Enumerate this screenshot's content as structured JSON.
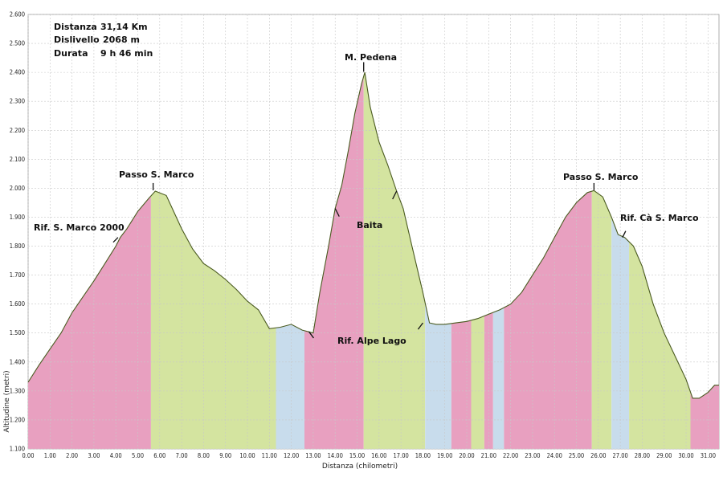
{
  "chart_data": {
    "type": "area",
    "title": "",
    "xlabel": "Distanza (chilometri)",
    "ylabel": "Altitudine (metri)",
    "xlim": [
      0,
      31.5
    ],
    "ylim": [
      1100,
      2600
    ],
    "x_ticks": [
      0,
      1,
      2,
      3,
      4,
      5,
      6,
      7,
      8,
      9,
      10,
      11,
      12,
      13,
      14,
      15,
      16,
      17,
      18,
      19,
      20,
      21,
      22,
      23,
      24,
      25,
      26,
      27,
      28,
      29,
      30,
      31
    ],
    "x_tick_labels": [
      "0.00",
      "1.00",
      "2.00",
      "3.00",
      "4.00",
      "5.00",
      "6.00",
      "7.00",
      "8.00",
      "9.00",
      "10.00",
      "11.00",
      "12.00",
      "13.00",
      "14.00",
      "15.00",
      "16.00",
      "17.00",
      "18.00",
      "19.00",
      "20.00",
      "21.00",
      "22.00",
      "23.00",
      "24.00",
      "25.00",
      "26.00",
      "27.00",
      "28.00",
      "29.00",
      "30.00",
      "31.00"
    ],
    "y_ticks": [
      1100,
      1200,
      1300,
      1400,
      1500,
      1600,
      1700,
      1800,
      1900,
      2000,
      2100,
      2200,
      2300,
      2400,
      2500,
      2600
    ],
    "y_tick_labels": [
      "1.100",
      "1.200",
      "1.300",
      "1.400",
      "1.500",
      "1.600",
      "1.700",
      "1.800",
      "1.900",
      "2.000",
      "2.100",
      "2.200",
      "2.300",
      "2.400",
      "2.500",
      "2.600"
    ],
    "grid": true,
    "profile": {
      "x": [
        0,
        0.5,
        1.0,
        1.5,
        2.0,
        2.5,
        3.0,
        3.5,
        4.0,
        4.2,
        4.5,
        5.0,
        5.5,
        5.8,
        6.3,
        7.0,
        7.5,
        8.0,
        8.5,
        9.0,
        9.5,
        10.0,
        10.5,
        11.0,
        11.5,
        12.0,
        12.5,
        13.0,
        13.3,
        13.7,
        14.0,
        14.3,
        14.6,
        14.9,
        15.2,
        15.35,
        15.6,
        16.0,
        16.4,
        16.8,
        17.1,
        17.5,
        18.0,
        18.3,
        18.6,
        19.0,
        19.5,
        20.0,
        20.5,
        21.0,
        21.5,
        22.0,
        22.5,
        23.0,
        23.5,
        24.0,
        24.5,
        25.0,
        25.5,
        25.8,
        26.2,
        26.6,
        26.9,
        27.2,
        27.6,
        28.0,
        28.5,
        29.0,
        29.5,
        30.0,
        30.3,
        30.6,
        31.0,
        31.3,
        31.5
      ],
      "y": [
        1330,
        1390,
        1445,
        1500,
        1570,
        1625,
        1680,
        1740,
        1800,
        1830,
        1860,
        1920,
        1965,
        1990,
        1975,
        1860,
        1790,
        1740,
        1715,
        1685,
        1650,
        1610,
        1580,
        1515,
        1520,
        1530,
        1510,
        1500,
        1640,
        1800,
        1930,
        2010,
        2130,
        2260,
        2360,
        2400,
        2280,
        2160,
        2080,
        1990,
        1930,
        1800,
        1640,
        1535,
        1530,
        1530,
        1535,
        1540,
        1550,
        1565,
        1580,
        1600,
        1640,
        1700,
        1760,
        1830,
        1900,
        1950,
        1985,
        1992,
        1970,
        1900,
        1840,
        1830,
        1800,
        1730,
        1600,
        1500,
        1420,
        1340,
        1275,
        1275,
        1295,
        1320,
        1320
      ]
    },
    "color_segments": [
      {
        "from": 0,
        "to": 5.6,
        "color": "#e8a0c0"
      },
      {
        "from": 5.6,
        "to": 11.3,
        "color": "#d4e4a0"
      },
      {
        "from": 11.3,
        "to": 12.6,
        "color": "#c8dcec"
      },
      {
        "from": 12.6,
        "to": 15.3,
        "color": "#e8a0c0"
      },
      {
        "from": 15.3,
        "to": 18.1,
        "color": "#d4e4a0"
      },
      {
        "from": 18.1,
        "to": 19.3,
        "color": "#c8dcec"
      },
      {
        "from": 19.3,
        "to": 20.2,
        "color": "#e8a0c0"
      },
      {
        "from": 20.2,
        "to": 20.8,
        "color": "#d4e4a0"
      },
      {
        "from": 20.8,
        "to": 21.2,
        "color": "#e8a0c0"
      },
      {
        "from": 21.2,
        "to": 21.7,
        "color": "#c8dcec"
      },
      {
        "from": 21.7,
        "to": 25.7,
        "color": "#e8a0c0"
      },
      {
        "from": 25.7,
        "to": 26.6,
        "color": "#d4e4a0"
      },
      {
        "from": 26.6,
        "to": 27.4,
        "color": "#c8dcec"
      },
      {
        "from": 27.4,
        "to": 29.1,
        "color": "#d4e4a0"
      },
      {
        "from": 29.1,
        "to": 30.2,
        "color": "#d4e4a0"
      },
      {
        "from": 30.2,
        "to": 31.5,
        "color": "#e8a0c0"
      }
    ],
    "annotations": [
      {
        "label": "Rif. S. Marco 2000",
        "x": 4.1,
        "y": 1830
      },
      {
        "label": "Passo S. Marco",
        "x": 5.7,
        "y": 1995
      },
      {
        "label": "M. Pedena",
        "x": 15.3,
        "y": 2400
      },
      {
        "label": "Baita",
        "x": 15.3,
        "y": 1880
      },
      {
        "label": "Rif. Alpe Lago",
        "x": 15.3,
        "y": 1520
      },
      {
        "label": "Passo S. Marco",
        "x": 25.8,
        "y": 1995
      },
      {
        "label": "Rif. Cà S. Marco",
        "x": 26.9,
        "y": 1830
      }
    ],
    "stats": [
      {
        "label": "Distanza",
        "value": "31,14 Km"
      },
      {
        "label": "Dislivello",
        "value": "2068 m"
      },
      {
        "label": "Durata",
        "value": "9 h 46 min"
      }
    ]
  }
}
